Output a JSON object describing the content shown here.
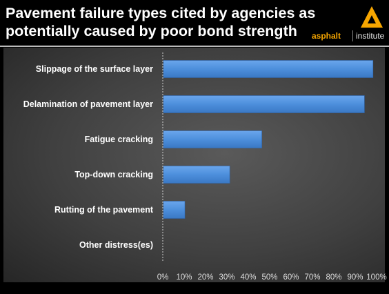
{
  "slide": {
    "title": "Pavement failure types cited by agencies as potentially caused by poor bond strength",
    "logo": {
      "word": "asphalt",
      "suffix": "institute",
      "color": "#f7a600"
    }
  },
  "chart_data": {
    "type": "bar",
    "orientation": "horizontal",
    "categories": [
      "Slippage of the surface layer",
      "Delamination of pavement layer",
      "Fatigue cracking",
      "Top-down cracking",
      "Rutting of the pavement",
      "Other distress(es)"
    ],
    "values": [
      0.98,
      0.94,
      0.46,
      0.31,
      0.1,
      0.0
    ],
    "xlim": [
      0,
      1
    ],
    "x_ticks": [
      "0%",
      "10%",
      "20%",
      "30%",
      "40%",
      "50%",
      "60%",
      "70%",
      "80%",
      "90%",
      "100%"
    ],
    "bar_color": "#4d8fdc",
    "grid": false,
    "title": "",
    "xlabel": "",
    "ylabel": ""
  }
}
